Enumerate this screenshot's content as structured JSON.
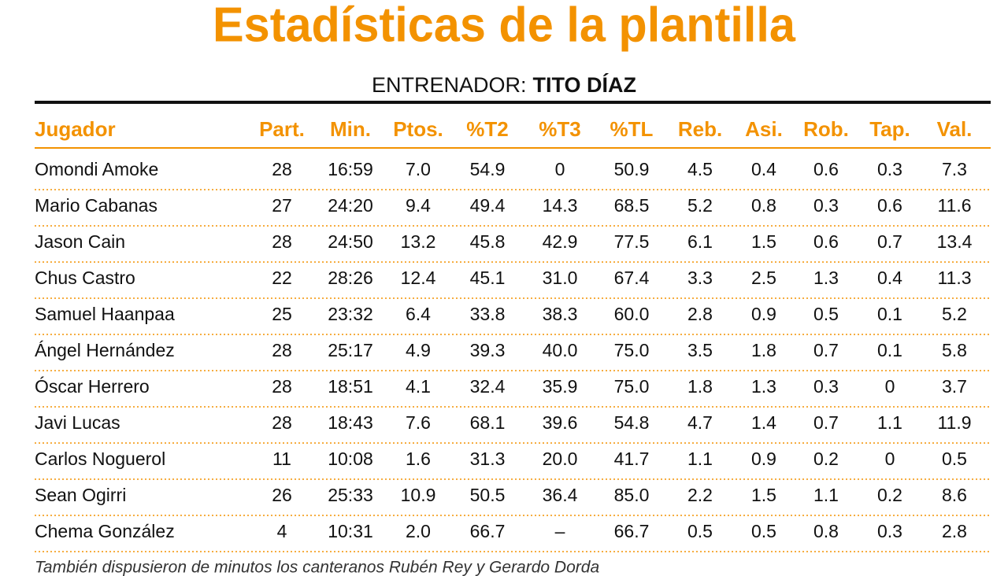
{
  "header": {
    "title": "Estadísticas de la plantilla",
    "coach_label": "ENTRENADOR:",
    "coach_name": "TITO DÍAZ"
  },
  "table": {
    "columns": [
      "Jugador",
      "Part.",
      "Min.",
      "Ptos.",
      "%T2",
      "%T3",
      "%TL",
      "Reb.",
      "Asi.",
      "Rob.",
      "Tap.",
      "Val."
    ],
    "rows": [
      [
        "Omondi Amoke",
        "28",
        "16:59",
        "7.0",
        "54.9",
        "0",
        "50.9",
        "4.5",
        "0.4",
        "0.6",
        "0.3",
        "7.3"
      ],
      [
        "Mario Cabanas",
        "27",
        "24:20",
        "9.4",
        "49.4",
        "14.3",
        "68.5",
        "5.2",
        "0.8",
        "0.3",
        "0.6",
        "11.6"
      ],
      [
        "Jason Cain",
        "28",
        "24:50",
        "13.2",
        "45.8",
        "42.9",
        "77.5",
        "6.1",
        "1.5",
        "0.6",
        "0.7",
        "13.4"
      ],
      [
        "Chus Castro",
        "22",
        "28:26",
        "12.4",
        "45.1",
        "31.0",
        "67.4",
        "3.3",
        "2.5",
        "1.3",
        "0.4",
        "11.3"
      ],
      [
        "Samuel Haanpaa",
        "25",
        "23:32",
        "6.4",
        "33.8",
        "38.3",
        "60.0",
        "2.8",
        "0.9",
        "0.5",
        "0.1",
        "5.2"
      ],
      [
        "Ángel Hernández",
        "28",
        "25:17",
        "4.9",
        "39.3",
        "40.0",
        "75.0",
        "3.5",
        "1.8",
        "0.7",
        "0.1",
        "5.8"
      ],
      [
        "Óscar Herrero",
        "28",
        "18:51",
        "4.1",
        "32.4",
        "35.9",
        "75.0",
        "1.8",
        "1.3",
        "0.3",
        "0",
        "3.7"
      ],
      [
        "Javi Lucas",
        "28",
        "18:43",
        "7.6",
        "68.1",
        "39.6",
        "54.8",
        "4.7",
        "1.4",
        "0.7",
        "1.1",
        "11.9"
      ],
      [
        "Carlos Noguerol",
        "11",
        "10:08",
        "1.6",
        "31.3",
        "20.0",
        "41.7",
        "1.1",
        "0.9",
        "0.2",
        "0",
        "0.5"
      ],
      [
        "Sean Ogirri",
        "26",
        "25:33",
        "10.9",
        "50.5",
        "36.4",
        "85.0",
        "2.2",
        "1.5",
        "1.1",
        "0.2",
        "8.6"
      ],
      [
        "Chema González",
        "4",
        "10:31",
        "2.0",
        "66.7",
        "–",
        "66.7",
        "0.5",
        "0.5",
        "0.8",
        "0.3",
        "2.8"
      ]
    ]
  },
  "footnote": "También dispusieron de minutos los canteranos Rubén Rey y Gerardo Dorda"
}
